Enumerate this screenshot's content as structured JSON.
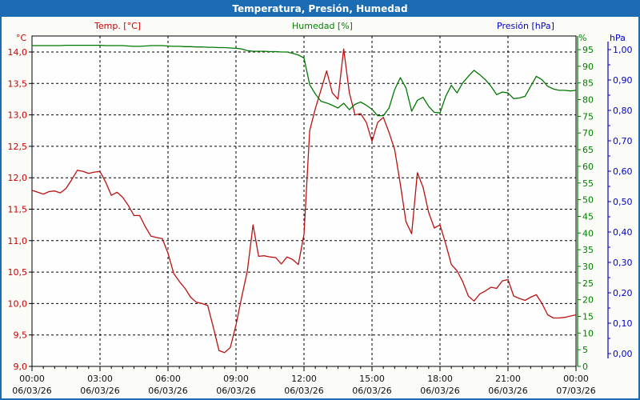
{
  "window": {
    "title": "Temperatura, Presión, Humedad"
  },
  "colors": {
    "frame_blue": "#1b6cb3",
    "temp_red": "#bb1111",
    "temp_label_red": "#cc0000",
    "humidity_green": "#007700",
    "humidity_label_green": "#008000",
    "pressure_blue": "#0000cc",
    "grid_black": "#000000",
    "x_label_black": "#111111",
    "plot_bg": "#fefefe"
  },
  "chart_data": {
    "type": "line",
    "title": "Temperatura, Presión, Humedad",
    "grid": true,
    "x_range_hours": [
      0,
      24
    ],
    "interval_hours": 0.25,
    "axes": {
      "temp": {
        "unit": "°C",
        "color": "#cc0000",
        "min": 9.0,
        "max": 14.25,
        "tick_values": [
          14,
          13.5,
          13,
          12.5,
          12,
          11.5,
          11,
          10.5,
          10,
          9.5,
          9
        ],
        "tick_labels": [
          "14,0",
          "13,5",
          "13,0",
          "12,5",
          "12,0",
          "11,5",
          "11,0",
          "10,5",
          "10,0",
          "9,5",
          "9,0"
        ]
      },
      "humidity": {
        "unit": "%",
        "color": "#008000",
        "min": 0,
        "max": 99,
        "tick_values": [
          95,
          90,
          85,
          80,
          75,
          70,
          65,
          60,
          55,
          50,
          45,
          40,
          35,
          30,
          25,
          20,
          15,
          10,
          5,
          0
        ],
        "tick_labels": [
          "95",
          "90",
          "85",
          "80",
          "75",
          "70",
          "65",
          "60",
          "55",
          "50",
          "45",
          "40",
          "35",
          "30",
          "25",
          "20",
          "15",
          "10",
          "5",
          "0"
        ]
      },
      "pressure": {
        "unit": "hPa",
        "color": "#0000cc",
        "min": 0.0,
        "max": 1.0,
        "tick_values": [
          1.0,
          0.9,
          0.8,
          0.7,
          0.6,
          0.5,
          0.4,
          0.3,
          0.2,
          0.1,
          0.0
        ],
        "tick_labels": [
          "1,00",
          "0,90",
          "0,80",
          "0,70",
          "0,60",
          "0,50",
          "0,40",
          "0,30",
          "0,20",
          "0,10",
          "0,00"
        ]
      },
      "x": {
        "tick_hours": [
          0,
          3,
          6,
          9,
          12,
          15,
          18,
          21,
          24
        ],
        "tick_times": [
          "00:00",
          "03:00",
          "06:00",
          "09:00",
          "12:00",
          "15:00",
          "18:00",
          "21:00",
          "00:00"
        ],
        "tick_dates": [
          "06/03/26",
          "06/03/26",
          "06/03/26",
          "06/03/26",
          "06/03/26",
          "06/03/26",
          "06/03/26",
          "06/03/26",
          "07/03/26"
        ]
      }
    },
    "series": [
      {
        "name": "Temp. [°C]",
        "axis": "temp",
        "color": "#bb1111",
        "values": [
          11.8,
          11.77,
          11.74,
          11.78,
          11.79,
          11.76,
          11.83,
          11.97,
          12.12,
          12.1,
          12.07,
          12.09,
          12.1,
          11.93,
          11.72,
          11.77,
          11.69,
          11.56,
          11.4,
          11.4,
          11.22,
          11.07,
          11.05,
          11.03,
          10.8,
          10.48,
          10.35,
          10.24,
          10.1,
          10.02,
          10.0,
          9.97,
          9.62,
          9.25,
          9.22,
          9.3,
          9.66,
          10.1,
          10.52,
          11.25,
          10.75,
          10.76,
          10.74,
          10.73,
          10.63,
          10.74,
          10.7,
          10.62,
          11.1,
          12.75,
          13.1,
          13.4,
          13.7,
          13.35,
          13.25,
          14.05,
          13.35,
          13.0,
          13.02,
          12.88,
          12.58,
          12.88,
          12.96,
          12.72,
          12.45,
          11.9,
          11.3,
          11.11,
          12.08,
          11.85,
          11.45,
          11.2,
          11.25,
          10.95,
          10.62,
          10.52,
          10.35,
          10.12,
          10.04,
          10.15,
          10.2,
          10.26,
          10.24,
          10.36,
          10.38,
          10.12,
          10.08,
          10.05,
          10.1,
          10.14,
          10.0,
          9.82,
          9.77,
          9.77,
          9.78,
          9.8,
          9.82
        ]
      },
      {
        "name": "Humedad [%]",
        "axis": "humidity",
        "color": "#007700",
        "values": [
          96.2,
          96.2,
          96.2,
          96.2,
          96.2,
          96.2,
          96.3,
          96.3,
          96.3,
          96.3,
          96.3,
          96.3,
          96.3,
          96.2,
          96.2,
          96.2,
          96.2,
          96.1,
          96.0,
          96.0,
          96.1,
          96.2,
          96.2,
          96.2,
          96.1,
          96.0,
          96.0,
          95.9,
          95.9,
          95.8,
          95.8,
          95.7,
          95.7,
          95.6,
          95.6,
          95.5,
          95.4,
          95.2,
          94.7,
          94.5,
          94.5,
          94.5,
          94.4,
          94.4,
          94.3,
          94.3,
          93.9,
          93.4,
          92.5,
          84.5,
          81.7,
          79.5,
          79.0,
          78.3,
          77.5,
          78.9,
          77.0,
          78.6,
          79.3,
          78.3,
          77.1,
          75.2,
          75.2,
          77.5,
          83.0,
          86.6,
          83.5,
          76.5,
          79.8,
          80.7,
          78.0,
          76.2,
          76.0,
          81.0,
          84.3,
          82.0,
          85.0,
          87.0,
          88.8,
          87.5,
          86.0,
          84.0,
          81.5,
          82.3,
          82.0,
          80.3,
          80.5,
          81.0,
          84.0,
          87.0,
          86.0,
          84.0,
          83.2,
          82.8,
          82.8,
          82.6,
          82.8
        ]
      },
      {
        "name": "Presión [hPa]",
        "axis": "pressure",
        "color": "#0000cc",
        "values": []
      }
    ]
  }
}
